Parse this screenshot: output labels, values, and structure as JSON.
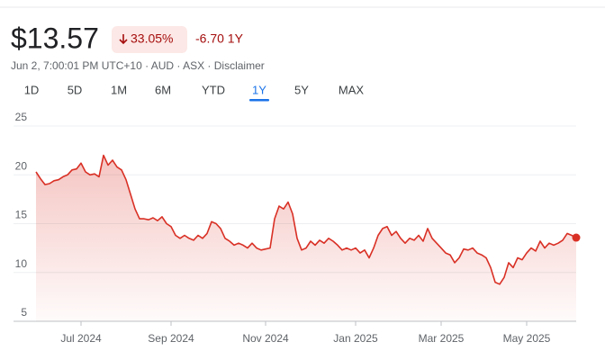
{
  "header": {
    "price": "$13.57",
    "change_percent": "33.05%",
    "change_abs": "-6.70 1Y",
    "subtitle": "Jun 2, 7:00:01 PM UTC+10 · AUD · ASX · Disclaimer"
  },
  "tabs": [
    "1D",
    "5D",
    "1M",
    "6M",
    "YTD",
    "1Y",
    "5Y",
    "MAX"
  ],
  "active_tab": "1Y",
  "chart_data": {
    "type": "line",
    "color": "#d93025",
    "categories": [
      null,
      null,
      null,
      null,
      null,
      null,
      null,
      null,
      null,
      null,
      "Jul 2024",
      null,
      null,
      null,
      null,
      null,
      null,
      null,
      null,
      null,
      null,
      null,
      null,
      null,
      null,
      null,
      null,
      null,
      null,
      null,
      "Sep 2024",
      null,
      null,
      null,
      null,
      null,
      null,
      null,
      null,
      null,
      null,
      null,
      null,
      null,
      null,
      null,
      null,
      null,
      null,
      null,
      null,
      "Nov 2024",
      null,
      null,
      null,
      null,
      null,
      null,
      null,
      null,
      null,
      null,
      null,
      null,
      null,
      null,
      null,
      null,
      null,
      null,
      null,
      "Jan 2025",
      null,
      null,
      null,
      null,
      null,
      null,
      null,
      null,
      null,
      null,
      null,
      null,
      null,
      null,
      null,
      null,
      null,
      null,
      "Mar 2025",
      null,
      null,
      null,
      null,
      null,
      null,
      null,
      null,
      null,
      null,
      null,
      null,
      null,
      null,
      null,
      null,
      null,
      null,
      "May 2025",
      null,
      null,
      null,
      null,
      null,
      null,
      null,
      null,
      null,
      null,
      null
    ],
    "values": [
      20.3,
      19.6,
      19.0,
      19.1,
      19.4,
      19.5,
      19.8,
      20.0,
      20.5,
      20.6,
      21.2,
      20.3,
      20.0,
      20.1,
      19.8,
      22.0,
      21.0,
      21.5,
      20.8,
      20.5,
      19.5,
      18.0,
      16.5,
      15.5,
      15.5,
      15.4,
      15.6,
      15.3,
      15.7,
      15.0,
      14.7,
      13.8,
      13.5,
      13.8,
      13.5,
      13.3,
      13.8,
      13.5,
      14.0,
      15.2,
      15.0,
      14.5,
      13.5,
      13.2,
      12.8,
      13.0,
      12.8,
      12.5,
      13.0,
      12.5,
      12.3,
      12.4,
      12.5,
      15.5,
      16.8,
      16.5,
      17.2,
      16.0,
      13.5,
      12.3,
      12.5,
      13.2,
      12.8,
      13.3,
      13.0,
      13.5,
      13.2,
      12.8,
      12.3,
      12.5,
      12.3,
      12.5,
      12.0,
      12.3,
      11.5,
      12.5,
      13.8,
      14.5,
      14.7,
      13.8,
      14.2,
      13.5,
      13.0,
      13.5,
      13.3,
      13.8,
      13.2,
      14.5,
      13.5,
      13.0,
      12.5,
      12.0,
      11.8,
      11.0,
      11.5,
      12.4,
      12.3,
      12.5,
      12.0,
      11.8,
      11.5,
      10.5,
      9.0,
      8.8,
      9.5,
      11.0,
      10.5,
      11.5,
      11.3,
      12.0,
      12.5,
      12.2,
      13.2,
      12.5,
      13.0,
      12.8,
      13.0,
      13.3,
      14.0,
      13.8,
      13.57
    ],
    "ylim": [
      5,
      25
    ],
    "yticks": [
      5,
      10,
      15,
      20,
      25
    ],
    "grid": true
  }
}
